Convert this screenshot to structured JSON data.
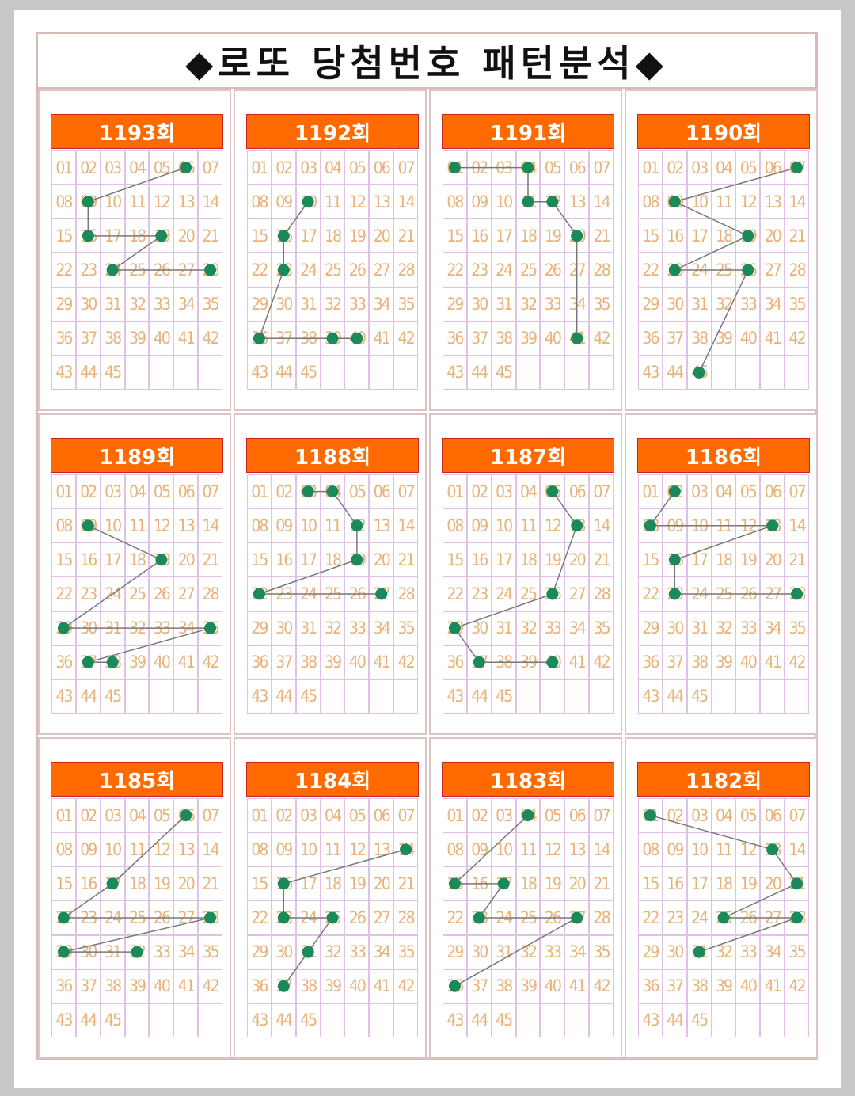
{
  "title": "◆로또  당첨번호  패턴분석◆",
  "colors": {
    "header": "#ff6a00",
    "dot": "#1a8a5a",
    "line": "#777777",
    "number": "#e8b27a",
    "grid": "#e3c0e8"
  },
  "draws": [
    {
      "round": "1193회",
      "numbers": [
        6,
        9,
        16,
        19,
        24,
        28
      ]
    },
    {
      "round": "1192회",
      "numbers": [
        10,
        16,
        23,
        36,
        39,
        40
      ]
    },
    {
      "round": "1191회",
      "numbers": [
        1,
        4,
        11,
        12,
        20,
        41
      ]
    },
    {
      "round": "1190회",
      "numbers": [
        7,
        9,
        19,
        23,
        26,
        45
      ]
    },
    {
      "round": "1189회",
      "numbers": [
        9,
        19,
        29,
        35,
        37,
        38
      ]
    },
    {
      "round": "1188회",
      "numbers": [
        3,
        4,
        12,
        19,
        22,
        27
      ]
    },
    {
      "round": "1187회",
      "numbers": [
        5,
        13,
        26,
        29,
        37,
        40
      ]
    },
    {
      "round": "1186회",
      "numbers": [
        2,
        8,
        13,
        16,
        23,
        28
      ]
    },
    {
      "round": "1185회",
      "numbers": [
        6,
        17,
        22,
        28,
        29,
        32
      ]
    },
    {
      "round": "1184회",
      "numbers": [
        14,
        16,
        23,
        25,
        31,
        37
      ]
    },
    {
      "round": "1183회",
      "numbers": [
        4,
        15,
        17,
        23,
        27,
        36
      ]
    },
    {
      "round": "1182회",
      "numbers": [
        1,
        13,
        21,
        25,
        28,
        31
      ]
    }
  ]
}
